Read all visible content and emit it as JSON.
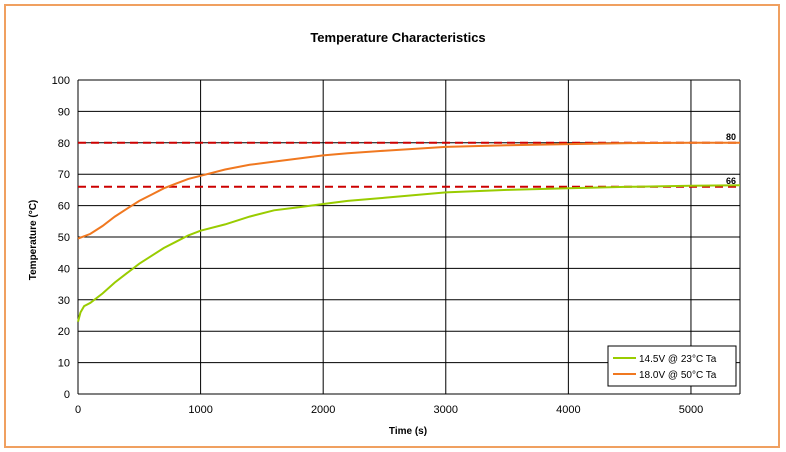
{
  "chart_data": {
    "type": "line",
    "title": "Temperature Characteristics",
    "xlabel": "Time (s)",
    "ylabel": "Temperature (°C)",
    "xlim": [
      0,
      5400
    ],
    "ylim": [
      0,
      100
    ],
    "x_ticks": [
      0,
      1000,
      2000,
      3000,
      4000,
      5000
    ],
    "y_ticks": [
      0,
      10,
      20,
      30,
      40,
      50,
      60,
      70,
      80,
      90,
      100
    ],
    "grid": true,
    "legend_position": "bottom-right",
    "series": [
      {
        "name": "14.5V @ 23°C Ta",
        "color": "#99cc00",
        "points": [
          [
            0,
            23
          ],
          [
            20,
            26
          ],
          [
            50,
            28
          ],
          [
            100,
            29
          ],
          [
            200,
            32
          ],
          [
            300,
            35.5
          ],
          [
            400,
            38.5
          ],
          [
            500,
            41.5
          ],
          [
            600,
            44
          ],
          [
            700,
            46.5
          ],
          [
            800,
            48.5
          ],
          [
            900,
            50.5
          ],
          [
            1000,
            52
          ],
          [
            1200,
            54
          ],
          [
            1400,
            56.5
          ],
          [
            1600,
            58.5
          ],
          [
            1800,
            59.5
          ],
          [
            2000,
            60.5
          ],
          [
            2200,
            61.5
          ],
          [
            2500,
            62.5
          ],
          [
            3000,
            64.2
          ],
          [
            3500,
            65
          ],
          [
            4000,
            65.5
          ],
          [
            4500,
            66
          ],
          [
            5000,
            66.3
          ],
          [
            5400,
            66.5
          ]
        ]
      },
      {
        "name": "18.0V @ 50°C Ta",
        "color": "#f07820",
        "points": [
          [
            0,
            49.5
          ],
          [
            100,
            51
          ],
          [
            200,
            53.5
          ],
          [
            300,
            56.5
          ],
          [
            400,
            59
          ],
          [
            500,
            61.5
          ],
          [
            600,
            63.5
          ],
          [
            700,
            65.5
          ],
          [
            800,
            67
          ],
          [
            900,
            68.5
          ],
          [
            1000,
            69.5
          ],
          [
            1200,
            71.5
          ],
          [
            1400,
            73
          ],
          [
            1600,
            74
          ],
          [
            1800,
            75
          ],
          [
            2000,
            76
          ],
          [
            2200,
            76.7
          ],
          [
            2500,
            77.5
          ],
          [
            3000,
            78.7
          ],
          [
            3500,
            79.2
          ],
          [
            4000,
            79.6
          ],
          [
            4500,
            79.9
          ],
          [
            5000,
            80
          ],
          [
            5400,
            80
          ]
        ]
      }
    ],
    "reference_lines": [
      {
        "y": 80,
        "label": "80",
        "color": "#cc0000"
      },
      {
        "y": 66,
        "label": "66",
        "color": "#cc0000"
      }
    ]
  }
}
